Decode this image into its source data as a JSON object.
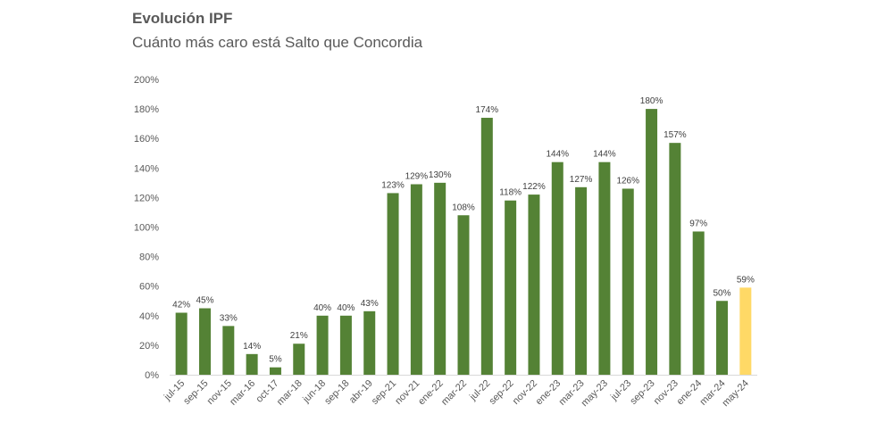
{
  "header": {
    "title": "Evolución IPF",
    "subtitle": "Cuánto más caro está Salto que Concordia"
  },
  "colors": {
    "bar": "#548235",
    "highlight": "#FFD966",
    "axis": "#d9d9d9",
    "text": "#595959"
  },
  "chart_data": {
    "type": "bar",
    "title": "Evolución IPF",
    "subtitle": "Cuánto más caro está Salto que Concordia",
    "xlabel": "",
    "ylabel": "",
    "ylim": [
      0,
      200
    ],
    "yticks": [
      0,
      20,
      40,
      60,
      80,
      100,
      120,
      140,
      160,
      180,
      200
    ],
    "ytick_suffix": "%",
    "grid": false,
    "legend": "none",
    "categories": [
      "jul-15",
      "sep-15",
      "nov-15",
      "mar-16",
      "oct-17",
      "mar-18",
      "jun-18",
      "sep-18",
      "abr-19",
      "sep-21",
      "nov-21",
      "ene-22",
      "mar-22",
      "jul-22",
      "sep-22",
      "nov-22",
      "ene-23",
      "mar-23",
      "may-23",
      "jul-23",
      "sep-23",
      "nov-23",
      "ene-24",
      "mar-24",
      "may-24"
    ],
    "values": [
      42,
      45,
      33,
      14,
      5,
      21,
      40,
      40,
      43,
      123,
      129,
      130,
      108,
      174,
      118,
      122,
      144,
      127,
      144,
      126,
      180,
      157,
      97,
      50,
      59
    ],
    "data_labels": [
      "42%",
      "45%",
      "33%",
      "14%",
      "5%",
      "21%",
      "40%",
      "40%",
      "43%",
      "123%",
      "129%",
      "130%",
      "108%",
      "174%",
      "118%",
      "122%",
      "144%",
      "127%",
      "144%",
      "126%",
      "180%",
      "157%",
      "97%",
      "50%",
      "59%"
    ],
    "highlighted_category": "may-24"
  }
}
